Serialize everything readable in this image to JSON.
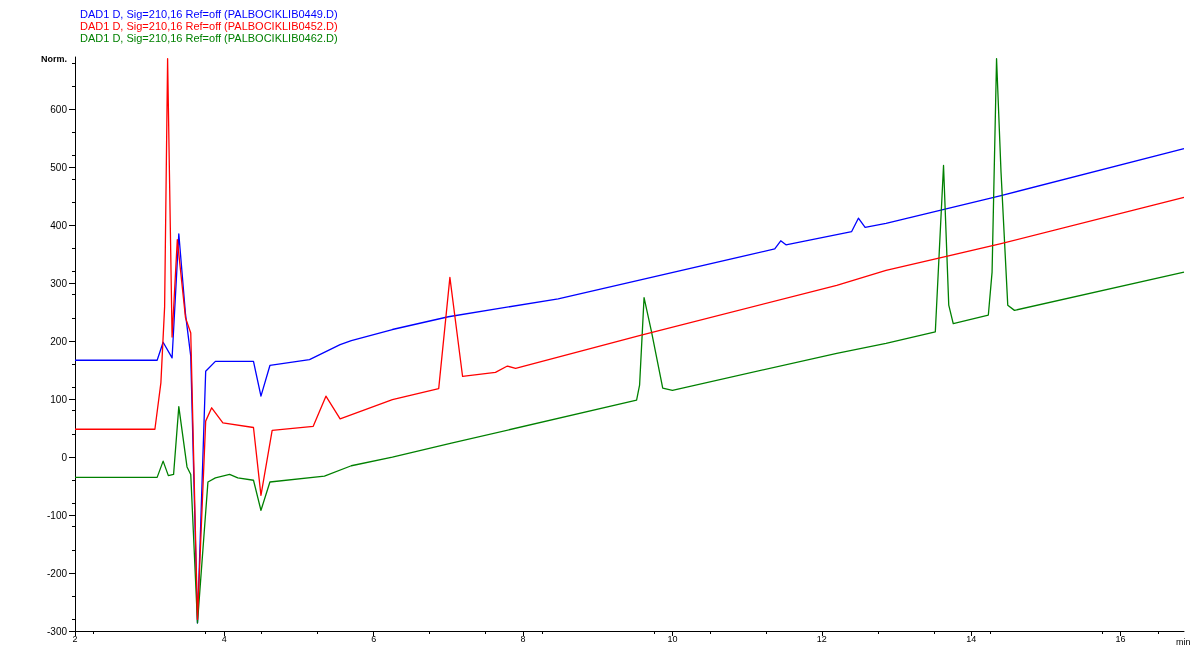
{
  "chart_data": {
    "type": "line",
    "xlabel": "min",
    "ylabel": "Norm.",
    "xlim": [
      2,
      16.85
    ],
    "xticks": [
      2,
      4,
      6,
      8,
      10,
      12,
      14,
      16
    ],
    "ylim": [
      -300,
      690
    ],
    "yticks": [
      -300,
      -200,
      -100,
      0,
      100,
      200,
      300,
      400,
      500,
      600
    ],
    "grid": false,
    "legend": "top left",
    "marker": "none",
    "line_style": "solid",
    "series": [
      {
        "name": "DAD1 D, Sig=210,16 Ref=off (PALBOCIKLIB0449.D)",
        "color": "#0000ff",
        "x": [
          2,
          3.1,
          3.18,
          3.3,
          3.39,
          3.48,
          3.55,
          3.64,
          3.75,
          3.88,
          4.39,
          4.49,
          4.61,
          5.14,
          5.55,
          5.7,
          6.25,
          7.0,
          8.47,
          11.37,
          11.45,
          11.52,
          12.4,
          12.49,
          12.58,
          12.86,
          14.4,
          16.85
        ],
        "values": [
          167,
          167,
          198,
          171,
          385,
          246,
          174,
          -286,
          148,
          165,
          165,
          105,
          158,
          168,
          194,
          201,
          220,
          242,
          273,
          359,
          373,
          366,
          389,
          412,
          396,
          403,
          451,
          532
        ]
      },
      {
        "name": "DAD1 D, Sig=210,16 Ref=off (PALBOCIKLIB0452.D)",
        "color": "#ff0000",
        "x": [
          2,
          3.07,
          3.15,
          3.2,
          3.24,
          3.3,
          3.37,
          3.48,
          3.55,
          3.64,
          3.75,
          3.83,
          3.98,
          4.39,
          4.49,
          4.64,
          5.19,
          5.36,
          5.55,
          6.25,
          6.87,
          7.02,
          7.19,
          7.63,
          7.79,
          7.9,
          9.57,
          12.2,
          12.86,
          14.4,
          16.85
        ],
        "values": [
          48,
          48,
          128,
          259,
          687,
          207,
          375,
          240,
          214,
          -280,
          62,
          85,
          59,
          51,
          -66,
          46,
          53,
          105,
          66,
          99,
          118,
          310,
          139,
          146,
          157,
          153,
          210,
          296,
          322,
          368,
          448
        ]
      },
      {
        "name": "DAD1 D, Sig=210,16 Ref=off (PALBOCIKLIB0462.D)",
        "color": "#008000",
        "x": [
          2,
          3.1,
          3.18,
          3.25,
          3.32,
          3.39,
          3.5,
          3.55,
          3.64,
          3.78,
          3.88,
          4.07,
          4.18,
          4.39,
          4.49,
          4.61,
          5.34,
          5.7,
          6.25,
          7.04,
          9.52,
          9.56,
          9.62,
          9.72,
          9.87,
          10.0,
          12.2,
          12.86,
          13.52,
          13.63,
          13.7,
          13.76,
          14.23,
          14.28,
          14.34,
          14.4,
          14.49,
          14.58,
          16.85
        ],
        "values": [
          -35,
          -35,
          -7,
          -32,
          -30,
          87,
          -17,
          -30,
          -286,
          -43,
          -36,
          -30,
          -36,
          -40,
          -92,
          -43,
          -33,
          -15,
          0,
          24,
          98,
          124,
          275,
          216,
          119,
          115,
          179,
          196,
          216,
          503,
          262,
          230,
          245,
          319,
          687,
          491,
          262,
          253,
          319
        ]
      }
    ]
  }
}
